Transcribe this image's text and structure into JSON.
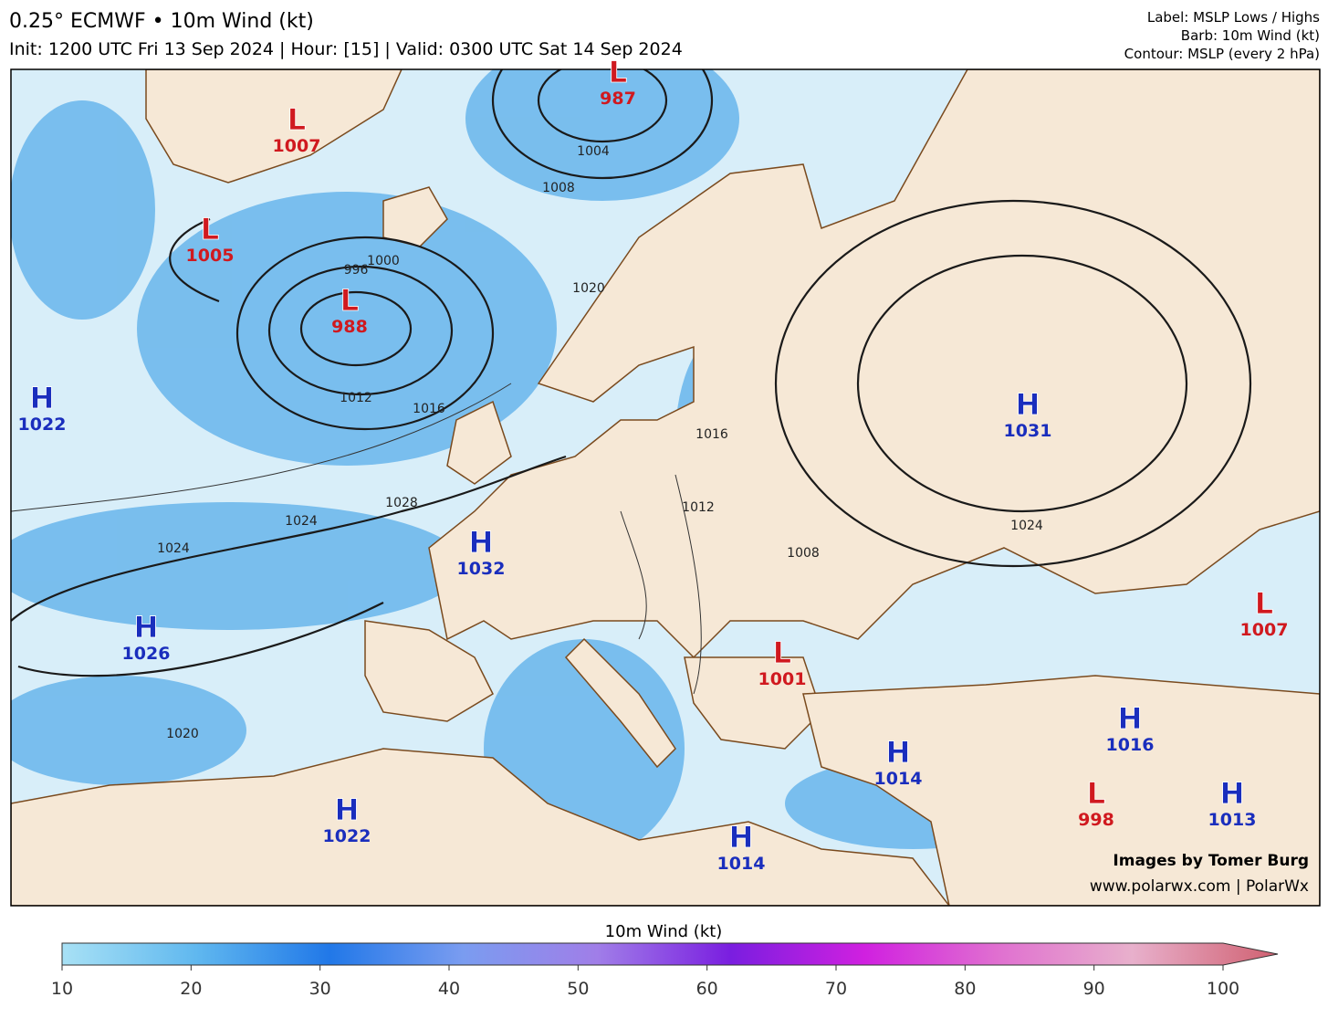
{
  "header": {
    "title": "0.25° ECMWF • 10m Wind (kt)",
    "subtitle": "Init: 1200 UTC Fri 13 Sep 2024 | Hour: [15] | Valid: 0300 UTC Sat 14 Sep 2024",
    "legend": [
      "Label: MSLP Lows / Highs",
      "Barb: 10m Wind (kt)",
      "Contour: MSLP (every 2 hPa)"
    ]
  },
  "centers": [
    {
      "label": "L",
      "value": 1007
    },
    {
      "label": "L",
      "value": 1005
    },
    {
      "label": "L",
      "value": 988
    },
    {
      "label": "L",
      "value": 987
    },
    {
      "label": "H",
      "value": 1022
    },
    {
      "label": "H",
      "value": 1032
    },
    {
      "label": "H",
      "value": 1026
    },
    {
      "label": "H",
      "value": 1031
    },
    {
      "label": "L",
      "value": 1001
    },
    {
      "label": "L",
      "value": 1007
    },
    {
      "label": "H",
      "value": 1016
    },
    {
      "label": "H",
      "value": 1014
    },
    {
      "label": "L",
      "value": 998
    },
    {
      "label": "H",
      "value": 1013
    },
    {
      "label": "H",
      "value": 1022
    },
    {
      "label": "H",
      "value": 1014
    }
  ],
  "isobar_labels": [
    "1004",
    "1008",
    "1012",
    "1020",
    "996",
    "1000",
    "1024",
    "1028",
    "1024",
    "1020",
    "1016",
    "1016",
    "1012",
    "1008",
    "1024"
  ],
  "colorbar": {
    "label": "10m Wind (kt)",
    "lim": [
      10,
      100
    ],
    "ticks": [
      10,
      20,
      30,
      40,
      50,
      60,
      70,
      80,
      90,
      100
    ]
  },
  "credits": [
    "Images by Tomer Burg",
    "www.polarwx.com | PolarWx"
  ]
}
